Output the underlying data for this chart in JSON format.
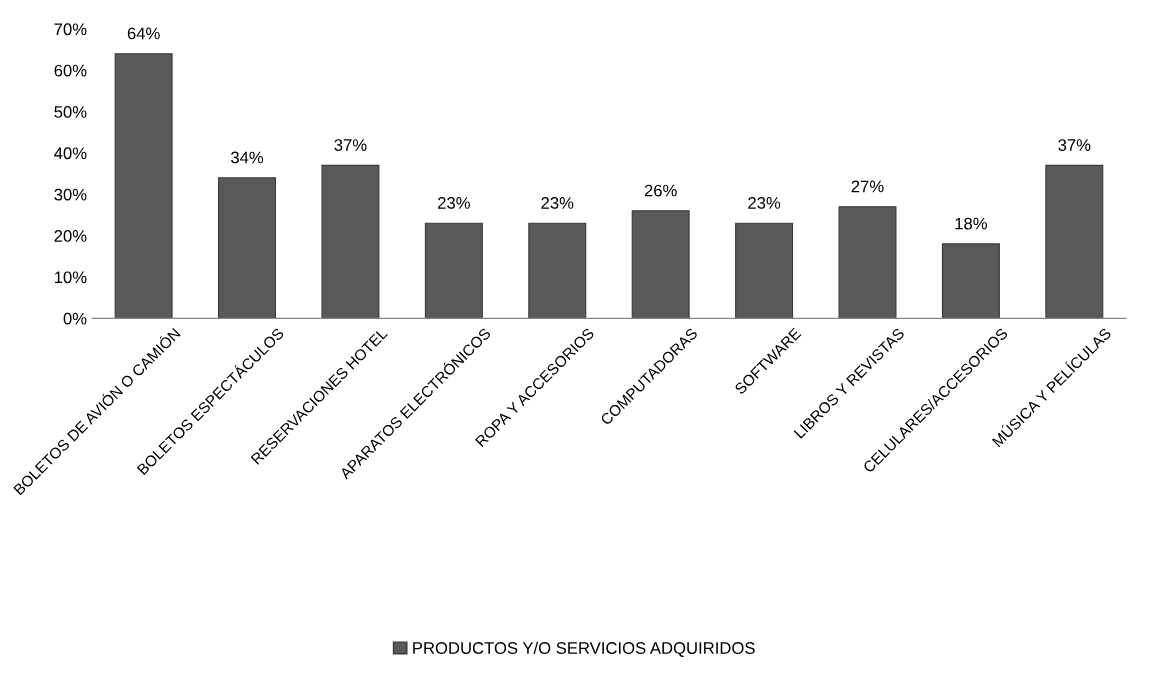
{
  "chart_data": {
    "type": "bar",
    "categories": [
      "BOLETOS DE AVIÓN O CAMIÓN",
      "BOLETOS ESPECTÁCULOS",
      "RESERVACIONES HOTEL",
      "APARATOS ELECTRÓNICOS",
      "ROPA Y ACCESORIOS",
      "COMPUTADORAS",
      "SOFTWARE",
      "LIBROS Y REVISTAS",
      "CELULARES/ACCESORIOS",
      "MÚSICA Y PELÍCULAS"
    ],
    "series": [
      {
        "name": "PRODUCTOS Y/O SERVICIOS ADQUIRIDOS",
        "color": "#595959",
        "values": [
          64,
          34,
          37,
          23,
          23,
          26,
          23,
          27,
          18,
          37
        ],
        "value_labels": [
          "64%",
          "34%",
          "37%",
          "23%",
          "23%",
          "26%",
          "23%",
          "27%",
          "18%",
          "37%"
        ]
      }
    ],
    "ylim": [
      0,
      70
    ],
    "yticks": [
      {
        "value": 0,
        "label": "0%"
      },
      {
        "value": 10,
        "label": "10%"
      },
      {
        "value": 20,
        "label": "20%"
      },
      {
        "value": 30,
        "label": "30%"
      },
      {
        "value": 40,
        "label": "40%"
      },
      {
        "value": 50,
        "label": "50%"
      },
      {
        "value": 60,
        "label": "60%"
      },
      {
        "value": 70,
        "label": "70%"
      }
    ],
    "grid": false,
    "legend": "bottom"
  }
}
